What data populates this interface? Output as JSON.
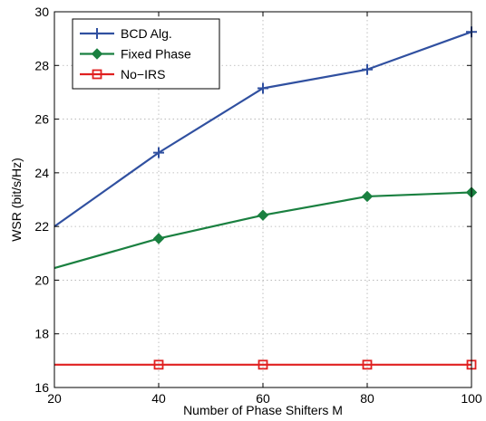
{
  "chart_data": {
    "type": "line",
    "title": "",
    "xlabel": "Number of Phase Shifters M",
    "ylabel": "WSR (bit/s/Hz)",
    "x": [
      20,
      40,
      60,
      80,
      100
    ],
    "xlim": [
      20,
      100
    ],
    "ylim": [
      16,
      30
    ],
    "xticks": [
      20,
      40,
      60,
      80,
      100
    ],
    "yticks": [
      16,
      18,
      20,
      22,
      24,
      26,
      28,
      30
    ],
    "grid": true,
    "legend_position": "top-left",
    "series": [
      {
        "name": "BCD Alg.",
        "values": [
          22.0,
          24.75,
          27.15,
          27.85,
          29.25
        ],
        "color": "#3050a0",
        "marker": "plus",
        "marker_x": [
          40,
          60,
          80,
          100
        ]
      },
      {
        "name": "Fixed Phase",
        "values": [
          20.45,
          21.55,
          22.42,
          23.12,
          23.27
        ],
        "color": "#1a8040",
        "marker": "diamond",
        "marker_x": [
          40,
          60,
          80,
          100
        ]
      },
      {
        "name": "No−IRS",
        "values": [
          16.85,
          16.85,
          16.85,
          16.85,
          16.85
        ],
        "color": "#e02020",
        "marker": "square",
        "marker_x": [
          40,
          60,
          80,
          100
        ]
      }
    ]
  }
}
